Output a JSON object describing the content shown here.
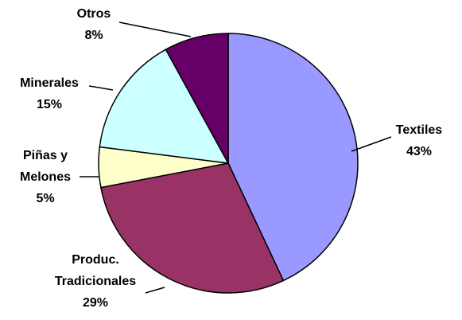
{
  "chart_data": {
    "type": "pie",
    "categories": [
      "Textiles",
      "Produc. Tradicionales",
      "Piñas y Melones",
      "Minerales",
      "Otros"
    ],
    "values": [
      43,
      29,
      5,
      15,
      8
    ],
    "value_labels": [
      "43%",
      "29%",
      "5%",
      "15%",
      "8%"
    ],
    "colors": [
      "#9999ff",
      "#993366",
      "#ffffcc",
      "#ccffff",
      "#660066"
    ]
  }
}
